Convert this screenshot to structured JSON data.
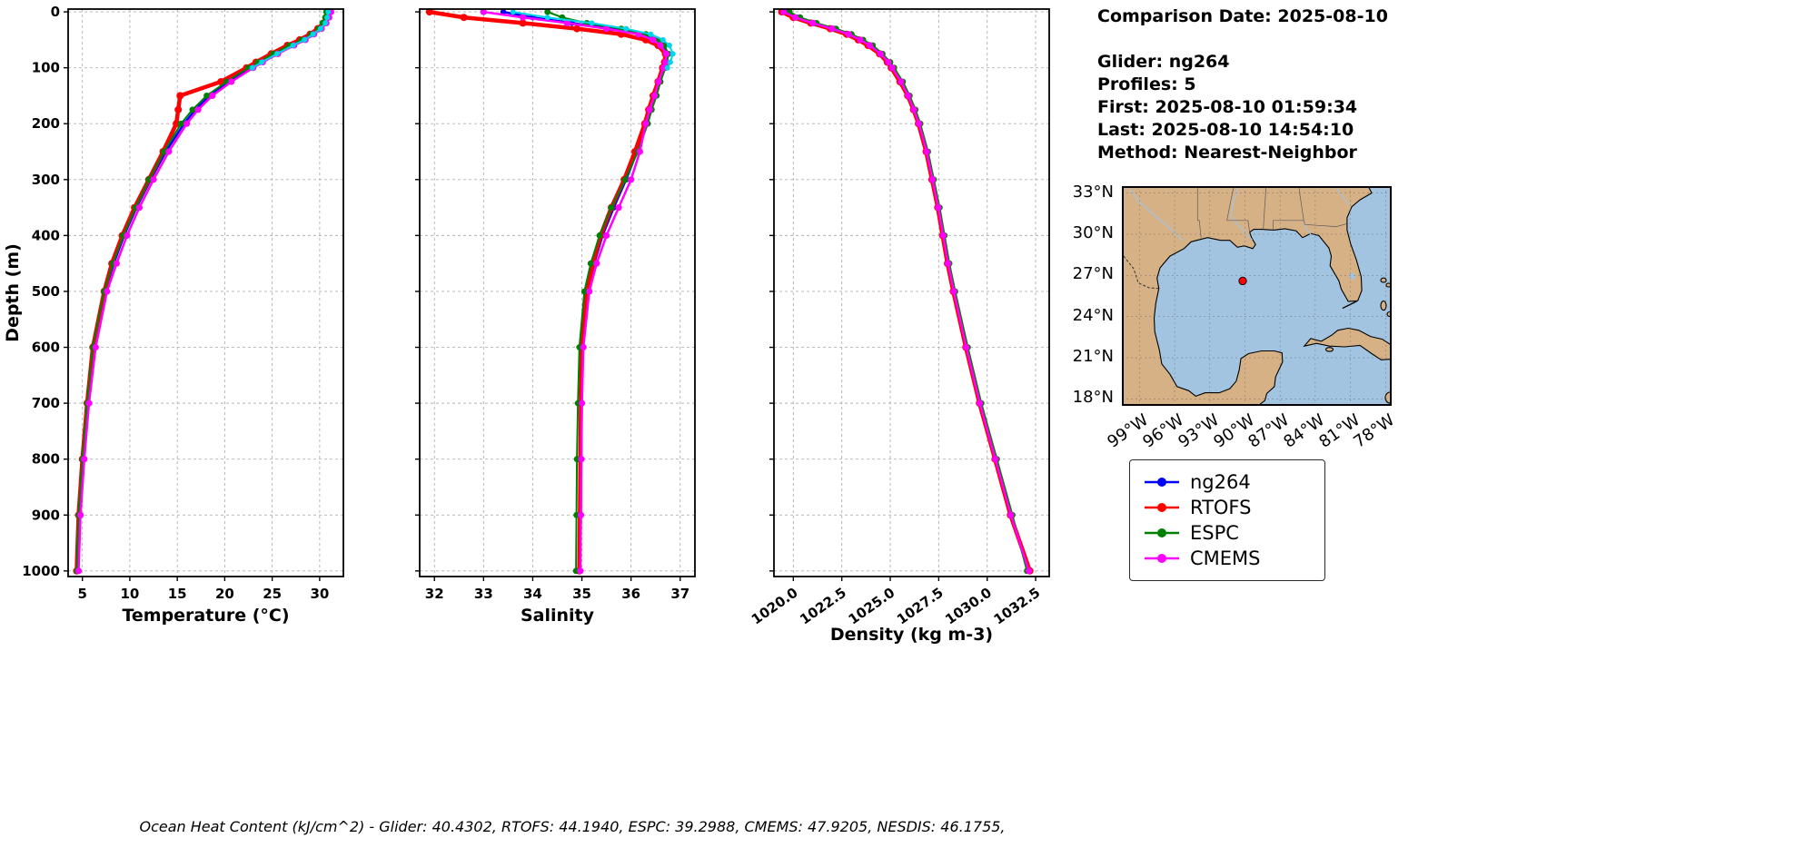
{
  "info_panel": {
    "comparison_date": "Comparison Date: 2025-08-10",
    "glider": "Glider: ng264",
    "profiles": "Profiles: 5",
    "first": "First: 2025-08-10 01:59:34",
    "last": "Last: 2025-08-10 14:54:10",
    "method": "Method: Nearest-Neighbor"
  },
  "footer": "Ocean Heat Content (kJ/cm^2) - Glider: 40.4302,  RTOFS: 44.1940,  ESPC: 39.2988,  CMEMS: 47.9205,  NESDIS: 46.1755,",
  "legend": {
    "items": [
      {
        "label": "ng264",
        "color": "#0000ff"
      },
      {
        "label": "RTOFS",
        "color": "#ff0000"
      },
      {
        "label": "ESPC",
        "color": "#008000"
      },
      {
        "label": "CMEMS",
        "color": "#ff00ff"
      }
    ]
  },
  "map": {
    "lat_ticks": [
      "33°N",
      "30°N",
      "27°N",
      "24°N",
      "21°N",
      "18°N"
    ],
    "lon_ticks": [
      "99°W",
      "96°W",
      "93°W",
      "90°W",
      "87°W",
      "84°W",
      "81°W",
      "78°W"
    ],
    "land_color": "#d6b186",
    "water_color": "#a2c4e0",
    "marker_color": "#ff0000"
  },
  "depth_axis": {
    "ylabel": "Depth (m)",
    "ylim": [
      -5,
      1010
    ],
    "yticks": [
      0,
      100,
      200,
      300,
      400,
      500,
      600,
      700,
      800,
      900,
      1000
    ]
  },
  "chart_data": [
    {
      "id": "temperature",
      "type": "line",
      "xlabel": "Temperature (°C)",
      "xlim": [
        3.5,
        32.5
      ],
      "xticks": [
        5,
        10,
        15,
        20,
        25,
        30
      ],
      "rotate_xticks": false,
      "depths": [
        0,
        10,
        20,
        30,
        40,
        50,
        60,
        75,
        90,
        100,
        125,
        150,
        175,
        200,
        250,
        300,
        350,
        400,
        450,
        500,
        600,
        700,
        800,
        900,
        1000
      ],
      "series": [
        {
          "name": "ng264",
          "color": "#0000ff",
          "lw": 2.5,
          "ms": 3.2,
          "values": [
            31.0,
            30.8,
            30.5,
            30.0,
            29.2,
            28.2,
            27.0,
            25.3,
            23.7,
            22.7,
            20.4,
            18.4,
            16.9,
            15.7,
            13.8,
            12.2,
            10.7,
            9.4,
            8.3,
            7.4,
            6.2,
            5.6,
            5.1,
            4.7,
            4.5
          ]
        },
        {
          "name": "RTOFS",
          "color": "#ff0000",
          "lw": 4.5,
          "ms": 4.0,
          "values": [
            30.9,
            30.7,
            30.4,
            29.8,
            29.0,
            27.9,
            26.6,
            24.9,
            23.3,
            22.3,
            19.6,
            15.3,
            15.1,
            14.9,
            13.5,
            12.0,
            10.5,
            9.2,
            8.1,
            7.3,
            6.1,
            5.5,
            5.0,
            4.6,
            4.4
          ]
        },
        {
          "name": "ESPC",
          "color": "#008000",
          "lw": 2.0,
          "ms": 3.4,
          "values": [
            30.7,
            30.6,
            30.3,
            29.9,
            29.1,
            28.1,
            26.8,
            25.1,
            23.5,
            22.5,
            20.2,
            18.1,
            16.6,
            15.4,
            13.6,
            12.0,
            10.6,
            9.3,
            8.2,
            7.3,
            6.1,
            5.5,
            5.0,
            4.6,
            4.4
          ]
        },
        {
          "name": "CMEMS",
          "color": "#ff00ff",
          "lw": 2.5,
          "ms": 3.6,
          "values": [
            31.2,
            31.0,
            30.7,
            30.2,
            29.4,
            28.5,
            27.3,
            25.6,
            24.0,
            23.0,
            20.7,
            18.7,
            17.2,
            16.0,
            14.1,
            12.5,
            11.0,
            9.7,
            8.6,
            7.6,
            6.4,
            5.7,
            5.2,
            4.8,
            4.6
          ]
        },
        {
          "name": "NESDIS",
          "color": "#00d5e8",
          "lw": 2.0,
          "ms": 3.0,
          "values": [
            30.9,
            30.8,
            30.6,
            30.1,
            29.3,
            28.4,
            27.2,
            25.5,
            23.9,
            22.9,
            null,
            null,
            null,
            null,
            null,
            null,
            null,
            null,
            null,
            null,
            null,
            null,
            null,
            null,
            null
          ]
        }
      ]
    },
    {
      "id": "salinity",
      "type": "line",
      "xlabel": "Salinity",
      "xlim": [
        31.7,
        37.3
      ],
      "xticks": [
        32,
        33,
        34,
        35,
        36,
        37
      ],
      "rotate_xticks": false,
      "depths": [
        0,
        10,
        20,
        30,
        40,
        50,
        60,
        75,
        90,
        100,
        125,
        150,
        175,
        200,
        250,
        300,
        350,
        400,
        450,
        500,
        600,
        700,
        800,
        900,
        1000
      ],
      "series": [
        {
          "name": "ng264",
          "color": "#0000ff",
          "lw": 2.5,
          "ms": 3.2,
          "values": [
            33.4,
            34.0,
            34.8,
            35.6,
            36.2,
            36.5,
            36.65,
            36.75,
            36.72,
            36.68,
            36.58,
            36.5,
            36.4,
            36.32,
            36.12,
            35.9,
            35.65,
            35.42,
            35.25,
            35.12,
            35.02,
            34.99,
            34.98,
            34.97,
            34.96
          ]
        },
        {
          "name": "RTOFS",
          "color": "#ff0000",
          "lw": 4.5,
          "ms": 4.0,
          "values": [
            31.9,
            32.6,
            33.8,
            34.9,
            35.8,
            36.3,
            36.55,
            36.7,
            36.68,
            36.64,
            36.55,
            36.45,
            36.36,
            36.28,
            36.08,
            35.86,
            35.6,
            35.38,
            35.22,
            35.1,
            35.0,
            34.98,
            34.97,
            34.96,
            34.95
          ]
        },
        {
          "name": "ESPC",
          "color": "#008000",
          "lw": 2.0,
          "ms": 3.4,
          "values": [
            34.3,
            34.6,
            35.1,
            35.8,
            36.3,
            36.55,
            36.68,
            36.76,
            36.73,
            36.7,
            36.6,
            36.52,
            36.42,
            36.34,
            36.14,
            35.88,
            35.6,
            35.36,
            35.18,
            35.05,
            34.95,
            34.92,
            34.9,
            34.89,
            34.88
          ]
        },
        {
          "name": "CMEMS",
          "color": "#ff00ff",
          "lw": 2.5,
          "ms": 3.6,
          "values": [
            33.0,
            33.8,
            34.7,
            35.5,
            36.15,
            36.45,
            36.6,
            36.72,
            36.7,
            36.66,
            36.56,
            36.48,
            36.38,
            36.3,
            36.18,
            36.0,
            35.75,
            35.5,
            35.3,
            35.15,
            35.03,
            35.0,
            34.99,
            34.98,
            34.97
          ]
        },
        {
          "name": "NESDIS",
          "color": "#00d5e8",
          "lw": 2.0,
          "ms": 3.0,
          "values": [
            33.6,
            34.3,
            35.2,
            35.9,
            36.4,
            36.65,
            36.78,
            36.85,
            36.8,
            36.74,
            null,
            null,
            null,
            null,
            null,
            null,
            null,
            null,
            null,
            null,
            null,
            null,
            null,
            null,
            null
          ]
        }
      ]
    },
    {
      "id": "density",
      "type": "line",
      "xlabel": "Density (kg m-3)",
      "xlim": [
        1019.0,
        1033.2
      ],
      "xticks": [
        1020.0,
        1022.5,
        1025.0,
        1027.5,
        1030.0,
        1032.5
      ],
      "xtick_labels": [
        "1020.0",
        "1022.5",
        "1025.0",
        "1027.5",
        "1030.0",
        "1032.5"
      ],
      "rotate_xticks": true,
      "depths": [
        0,
        10,
        20,
        30,
        40,
        50,
        60,
        75,
        90,
        100,
        125,
        150,
        175,
        200,
        250,
        300,
        350,
        400,
        450,
        500,
        600,
        700,
        800,
        900,
        1000
      ],
      "series": [
        {
          "name": "ng264",
          "color": "#0000ff",
          "lw": 2.5,
          "ms": 3.2,
          "values": [
            1019.6,
            1020.2,
            1021.1,
            1022.1,
            1022.9,
            1023.5,
            1024.0,
            1024.55,
            1024.95,
            1025.15,
            1025.6,
            1025.95,
            1026.25,
            1026.5,
            1026.9,
            1027.2,
            1027.5,
            1027.75,
            1028.0,
            1028.3,
            1028.95,
            1029.65,
            1030.45,
            1031.25,
            1032.1
          ]
        },
        {
          "name": "RTOFS",
          "color": "#ff0000",
          "lw": 4.5,
          "ms": 4.0,
          "values": [
            1019.4,
            1020.0,
            1020.9,
            1021.9,
            1022.75,
            1023.35,
            1023.85,
            1024.45,
            1024.85,
            1025.05,
            1025.5,
            1025.9,
            1026.2,
            1026.45,
            1026.85,
            1027.15,
            1027.45,
            1027.7,
            1027.95,
            1028.25,
            1028.9,
            1029.6,
            1030.4,
            1031.2,
            1032.2
          ]
        },
        {
          "name": "ESPC",
          "color": "#008000",
          "lw": 2.0,
          "ms": 3.4,
          "values": [
            1019.8,
            1020.35,
            1021.2,
            1022.2,
            1023.0,
            1023.6,
            1024.1,
            1024.6,
            1025.0,
            1025.2,
            1025.65,
            1026.0,
            1026.3,
            1026.55,
            1026.95,
            1027.25,
            1027.55,
            1027.8,
            1028.05,
            1028.35,
            1029.0,
            1029.7,
            1030.5,
            1031.3,
            1032.05
          ]
        },
        {
          "name": "CMEMS",
          "color": "#ff00ff",
          "lw": 2.5,
          "ms": 3.6,
          "values": [
            1019.5,
            1020.1,
            1021.0,
            1022.0,
            1022.85,
            1023.45,
            1023.95,
            1024.5,
            1024.9,
            1025.1,
            1025.55,
            1025.92,
            1026.22,
            1026.48,
            1026.88,
            1027.18,
            1027.48,
            1027.73,
            1027.98,
            1028.28,
            1028.92,
            1029.62,
            1030.42,
            1031.22,
            1032.15
          ]
        }
      ]
    }
  ]
}
